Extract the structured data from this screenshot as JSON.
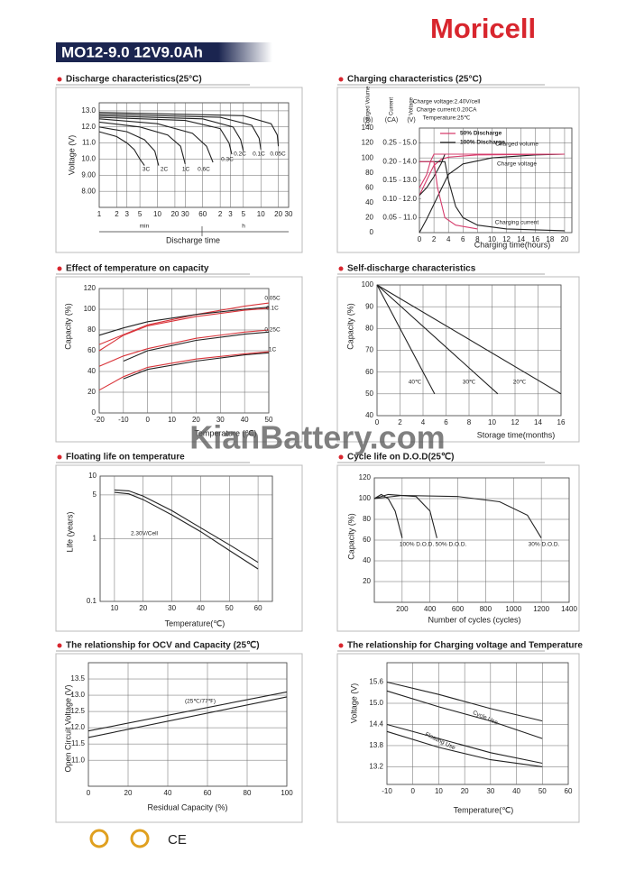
{
  "header": {
    "brand": "Moricell",
    "model": "MO12-9.0 12V9.0Ah"
  },
  "watermark": "KianBattery.com",
  "footer": {
    "mark": "CE"
  },
  "panels": [
    {
      "title": "Discharge characteristics(25°C)",
      "ylabel": "Voltage (V)",
      "xlabel": "Discharge time",
      "xlog": true,
      "xlim": [
        1,
        1800
      ],
      "xticks": [
        1,
        2,
        3,
        5,
        10,
        20,
        30,
        60,
        {
          "value": 120,
          "label": "2"
        },
        {
          "value": 180,
          "label": "3"
        },
        {
          "value": 300,
          "label": "5"
        },
        {
          "value": 600,
          "label": "10"
        },
        {
          "value": 1200,
          "label": "20"
        },
        {
          "value": 1800,
          "label": "30"
        }
      ],
      "ylim": [
        7.0,
        13.5
      ],
      "yticks": [
        {
          "value": 8,
          "label": "8.00"
        },
        {
          "value": 9,
          "label": "9.00"
        },
        {
          "value": 10,
          "label": "10.0"
        },
        {
          "value": 11,
          "label": "11.0"
        },
        {
          "value": 12,
          "label": "12.0"
        },
        {
          "value": 13,
          "label": "13.0"
        }
      ],
      "series": [
        {
          "color": "#222",
          "x": [
            1,
            2,
            3,
            4,
            5,
            6
          ],
          "values": [
            11.7,
            11.4,
            11.0,
            10.6,
            10.0,
            9.6
          ]
        },
        {
          "color": "#222",
          "x": [
            1,
            3,
            6,
            9,
            10.5
          ],
          "values": [
            12.0,
            11.7,
            11.2,
            10.5,
            9.6
          ]
        },
        {
          "color": "#222",
          "x": [
            1,
            5,
            15,
            25,
            30
          ],
          "values": [
            12.3,
            12.0,
            11.5,
            10.8,
            9.7
          ]
        },
        {
          "color": "#222",
          "x": [
            1,
            10,
            40,
            70,
            90
          ],
          "values": [
            12.5,
            12.2,
            11.6,
            10.8,
            9.8
          ]
        },
        {
          "color": "#222",
          "x": [
            1,
            30,
            120,
            170,
            190
          ],
          "values": [
            12.6,
            12.4,
            11.9,
            11.0,
            10.3
          ]
        },
        {
          "color": "#222",
          "x": [
            1,
            60,
            200,
            270,
            300
          ],
          "values": [
            12.7,
            12.5,
            12.0,
            11.2,
            10.5
          ]
        },
        {
          "color": "#222",
          "x": [
            1,
            120,
            420,
            560,
            600
          ],
          "values": [
            12.8,
            12.6,
            12.1,
            11.3,
            10.6
          ]
        },
        {
          "color": "#222",
          "x": [
            1,
            300,
            900,
            1150,
            1200
          ],
          "values": [
            12.9,
            12.7,
            12.2,
            11.5,
            10.8
          ]
        }
      ],
      "labels": [
        "3C",
        "2C",
        "1C",
        "0.6C",
        "0.3C",
        "0.2C",
        "0.1C",
        "0.05C",
        "min",
        "h"
      ]
    },
    {
      "title": "Charging characteristics (25°C)",
      "xlabel": "Charging time(hours)",
      "xlim": [
        0,
        21
      ],
      "xticks": [
        0,
        2,
        4,
        6,
        8,
        10,
        12,
        14,
        16,
        18,
        20
      ],
      "axes": [
        {
          "header": "Charged Volume",
          "unit": "(%)",
          "lim": [
            0,
            140
          ],
          "ticks": [
            0,
            20,
            40,
            60,
            80,
            100,
            120,
            140
          ]
        },
        {
          "header": "Current",
          "unit": "(CA)",
          "lim": [
            0.01,
            0.29
          ],
          "ticks": [
            0.05,
            {
              "value": 0.1,
              "label": "0.10"
            },
            0.15,
            {
              "value": 0.2,
              "label": "0.20"
            },
            0.25
          ]
        },
        {
          "header": "Voltage",
          "unit": "(V)",
          "lim": [
            10.2,
            15.8
          ],
          "ticks": [
            {
              "value": 11,
              "label": "11.0"
            },
            {
              "value": 12,
              "label": "12.0"
            },
            {
              "value": 13,
              "label": "13.0"
            },
            {
              "value": 14,
              "label": "14.0"
            },
            {
              "value": 15,
              "label": "15.0"
            }
          ]
        }
      ],
      "legend": [
        {
          "name": "50% Discharge",
          "color": "#d63c6c"
        },
        {
          "name": "100% Discharge",
          "color": "#222"
        }
      ],
      "series": [
        {
          "color": "#222",
          "axis": 0,
          "x": [
            0,
            1,
            2,
            3,
            4,
            6,
            10,
            16,
            20
          ],
          "values": [
            0,
            18,
            38,
            58,
            78,
            92,
            100,
            104,
            105
          ]
        },
        {
          "color": "#d63c6c",
          "axis": 0,
          "x": [
            0,
            1,
            2,
            3,
            4,
            8,
            20
          ],
          "values": [
            50,
            70,
            90,
            98,
            101,
            104,
            105
          ]
        },
        {
          "color": "#222",
          "axis": 2,
          "x": [
            0,
            1,
            2,
            3,
            3.5,
            5,
            20
          ],
          "values": [
            12.2,
            12.6,
            13.2,
            13.9,
            14.4,
            14.4,
            14.4
          ]
        },
        {
          "color": "#d63c6c",
          "axis": 2,
          "x": [
            0,
            1,
            1.5,
            2,
            20
          ],
          "values": [
            12.6,
            13.3,
            14.0,
            14.4,
            14.4
          ]
        },
        {
          "color": "#222",
          "axis": 1,
          "x": [
            0,
            3.5,
            4,
            5,
            6,
            8,
            12,
            20
          ],
          "values": [
            0.2,
            0.2,
            0.15,
            0.08,
            0.05,
            0.03,
            0.02,
            0.015
          ]
        },
        {
          "color": "#d63c6c",
          "axis": 1,
          "x": [
            0,
            2,
            2.5,
            3.5,
            5,
            8
          ],
          "values": [
            0.2,
            0.2,
            0.13,
            0.05,
            0.03,
            0.02
          ]
        }
      ],
      "labels": [
        "Charge voltage:2.40V/cell",
        "Charge current:0.20CA",
        "Temperature:25℃",
        "Charged volume",
        "Charge voltage",
        "Charging current"
      ]
    },
    {
      "title": "Effect of temperature on capacity",
      "ylabel": "Capacity (%)",
      "xlabel": "Temperature (℃)",
      "xlim": [
        -20,
        50
      ],
      "xticks": [
        -20,
        -10,
        0,
        10,
        20,
        30,
        40,
        50
      ],
      "ylim": [
        0,
        120
      ],
      "yticks": [
        0,
        20,
        40,
        60,
        80,
        100,
        120
      ],
      "series": [
        {
          "color": "#d9343a",
          "x": [
            -20,
            0,
            20,
            40,
            50
          ],
          "values": [
            66,
            85,
            95,
            103,
            106
          ]
        },
        {
          "color": "#222",
          "x": [
            -20,
            -10,
            0,
            20,
            40,
            50
          ],
          "values": [
            75,
            82,
            88,
            95,
            100,
            102
          ]
        },
        {
          "color": "#d9343a",
          "x": [
            -20,
            -10,
            0,
            20,
            40,
            50
          ],
          "values": [
            60,
            75,
            84,
            93,
            99,
            101
          ]
        },
        {
          "color": "#222",
          "x": [
            -10,
            0,
            20,
            40,
            50
          ],
          "values": [
            50,
            60,
            70,
            76,
            78
          ]
        },
        {
          "color": "#d9343a",
          "x": [
            -20,
            -10,
            0,
            20,
            40,
            50
          ],
          "values": [
            45,
            55,
            62,
            72,
            78,
            80
          ]
        },
        {
          "color": "#222",
          "x": [
            -10,
            0,
            20,
            40,
            50
          ],
          "values": [
            33,
            42,
            50,
            56,
            58
          ]
        },
        {
          "color": "#d9343a",
          "x": [
            -20,
            -10,
            0,
            20,
            40,
            50
          ],
          "values": [
            22,
            35,
            44,
            52,
            57,
            59
          ]
        }
      ],
      "labels": [
        "0.05C",
        "0.1C",
        "0.25C",
        "1C"
      ]
    },
    {
      "title": "Self-discharge characteristics",
      "ylabel": "Capacity (%)",
      "xlabel": "Storage time(months)",
      "xlim": [
        0,
        16
      ],
      "xticks": [
        0,
        2,
        4,
        6,
        8,
        10,
        12,
        14,
        16
      ],
      "ylim": [
        40,
        100
      ],
      "yticks": [
        40,
        50,
        60,
        70,
        80,
        90,
        100
      ],
      "series": [
        {
          "color": "#222",
          "x": [
            0,
            5
          ],
          "values": [
            100,
            50
          ]
        },
        {
          "color": "#222",
          "x": [
            0,
            10.5
          ],
          "values": [
            100,
            50
          ]
        },
        {
          "color": "#222",
          "x": [
            0,
            16
          ],
          "values": [
            100,
            50
          ]
        }
      ],
      "labels": [
        "40℃",
        "30℃",
        "20℃"
      ]
    },
    {
      "title": "Floating life on temperature",
      "ylabel": "Life (years)",
      "xlabel": "Temperature(℃)",
      "ylog": true,
      "xlim": [
        5,
        65
      ],
      "xticks": [
        10,
        20,
        30,
        40,
        50,
        60
      ],
      "ylim": [
        0.1,
        10
      ],
      "yticks": [
        0.1,
        1,
        5,
        10
      ],
      "series": [
        {
          "color": "#222",
          "x": [
            10,
            15,
            20,
            30,
            40,
            50,
            60
          ],
          "values": [
            6,
            5.8,
            4.8,
            2.8,
            1.5,
            0.8,
            0.42
          ]
        },
        {
          "color": "#222",
          "x": [
            10,
            15,
            20,
            30,
            40,
            50,
            60
          ],
          "values": [
            5.5,
            5.2,
            4.2,
            2.4,
            1.3,
            0.65,
            0.33
          ]
        }
      ],
      "labels": [
        "2.30V/Cell"
      ]
    },
    {
      "title": "Cycle life on D.O.D(25℃)",
      "ylabel": "Capacity (%)",
      "xlabel": "Number of cycles (cycles)",
      "xlim": [
        0,
        1400
      ],
      "xticks": [
        200,
        400,
        600,
        800,
        1000,
        1200,
        1400
      ],
      "ylim": [
        0,
        120
      ],
      "yticks": [
        20,
        40,
        60,
        80,
        100,
        120
      ],
      "series": [
        {
          "color": "#222",
          "x": [
            0,
            50,
            100,
            150,
            200
          ],
          "values": [
            100,
            104,
            100,
            88,
            62
          ]
        },
        {
          "color": "#222",
          "x": [
            0,
            100,
            300,
            400,
            450
          ],
          "values": [
            100,
            104,
            102,
            88,
            62
          ]
        },
        {
          "color": "#222",
          "x": [
            0,
            200,
            600,
            900,
            1100,
            1200
          ],
          "values": [
            100,
            103,
            102,
            97,
            84,
            62
          ]
        }
      ],
      "labels": [
        "100% D.O.D.",
        "50% D.O.D.",
        "30% D.O.D."
      ]
    },
    {
      "title": "The relationship  for OCV and Capacity (25℃)",
      "ylabel": "Open Circuit Voltage (V)",
      "xlabel": "Residual Capacity (%)",
      "xlim": [
        0,
        100
      ],
      "xticks": [
        0,
        20,
        40,
        60,
        80,
        100
      ],
      "ylim": [
        10.2,
        14.0
      ],
      "yticks": [
        {
          "value": 11,
          "label": "11.0"
        },
        11.5,
        {
          "value": 12,
          "label": "12.0"
        },
        12.5,
        {
          "value": 13,
          "label": "13.0"
        },
        13.5
      ],
      "series": [
        {
          "color": "#222",
          "x": [
            0,
            100
          ],
          "values": [
            11.9,
            13.1
          ]
        },
        {
          "color": "#222",
          "x": [
            0,
            100
          ],
          "values": [
            11.7,
            12.95
          ]
        }
      ],
      "labels": [
        "(25℃/77℉)"
      ]
    },
    {
      "title": "The relationship for Charging voltage and Temperature",
      "ylabel": "Voltage (V)",
      "xlabel": "Temperature(℃)",
      "xlim": [
        -10,
        60
      ],
      "xticks": [
        -10,
        0,
        10,
        20,
        30,
        40,
        50,
        60
      ],
      "ylim": [
        12.7,
        16.15
      ],
      "yticks": [
        13.2,
        13.8,
        14.4,
        {
          "value": 15,
          "label": "15.0"
        },
        15.6
      ],
      "series": [
        {
          "color": "#222",
          "x": [
            -10,
            10,
            30,
            50
          ],
          "values": [
            15.6,
            15.25,
            14.85,
            14.5
          ]
        },
        {
          "color": "#222",
          "x": [
            -10,
            10,
            30,
            50
          ],
          "values": [
            15.35,
            14.9,
            14.5,
            14.0
          ]
        },
        {
          "color": "#222",
          "x": [
            -10,
            10,
            30,
            50
          ],
          "values": [
            14.4,
            14.0,
            13.6,
            13.3
          ]
        },
        {
          "color": "#222",
          "x": [
            -10,
            10,
            30,
            50
          ],
          "values": [
            14.2,
            13.75,
            13.4,
            13.2
          ]
        }
      ],
      "labels": [
        "Cycle Use",
        "Floating Use"
      ]
    }
  ]
}
